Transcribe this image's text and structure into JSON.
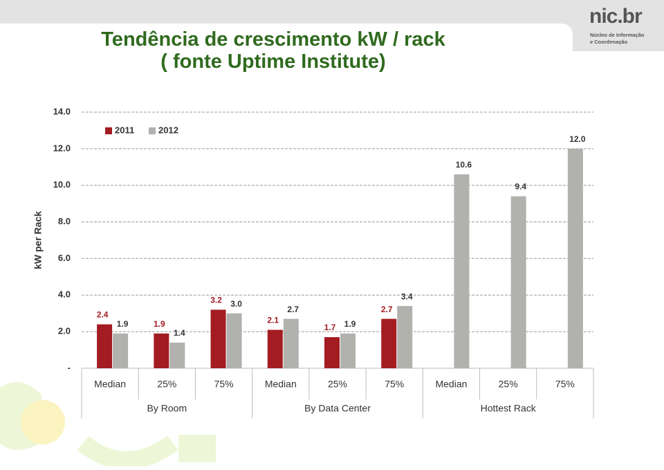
{
  "slide": {
    "title_lines": [
      "Tendência de crescimento kW / rack",
      "( fonte Uptime Institute)"
    ]
  },
  "logo": {
    "name": "nic.br",
    "text_lines": [
      "Núcleo de Informação",
      "e Coordenação"
    ]
  },
  "chart_data": {
    "type": "bar",
    "y_label": "kW per Rack",
    "groups": [
      {
        "name": "By Room",
        "categories": [
          "Median",
          "25%",
          "75%"
        ]
      },
      {
        "name": "By Data Center",
        "categories": [
          "Median",
          "25%",
          "75%"
        ]
      },
      {
        "name": "Hottest Rack",
        "categories": [
          "Median",
          "25%",
          "75%"
        ]
      }
    ],
    "series": [
      {
        "name": "2011",
        "color": "#a31c22",
        "label_color": "#a31c22",
        "values": [
          2.4,
          1.9,
          3.2,
          2.1,
          1.7,
          2.7,
          null,
          null,
          null
        ]
      },
      {
        "name": "2012",
        "color": "#b1b1ae",
        "label_color": "#333333",
        "values": [
          1.9,
          1.4,
          3.0,
          2.7,
          1.9,
          3.4,
          10.6,
          9.4,
          12.0
        ],
        "value_labels": [
          "1.9",
          "1.4",
          "3.0",
          "2.7",
          "1.9",
          "3.4",
          "10.6",
          "9.4",
          "12.0"
        ]
      }
    ],
    "ylim": [
      0,
      14
    ],
    "yticks": [
      {
        "value": 0,
        "label": "-"
      },
      {
        "value": 2,
        "label": "2.0"
      },
      {
        "value": 4,
        "label": "4.0"
      },
      {
        "value": 6,
        "label": "6.0"
      },
      {
        "value": 8,
        "label": "8.0"
      },
      {
        "value": 10,
        "label": "10.0"
      },
      {
        "value": 12,
        "label": "12.0"
      },
      {
        "value": 14,
        "label": "14.0"
      }
    ],
    "grid": true,
    "legend": "top-left"
  }
}
